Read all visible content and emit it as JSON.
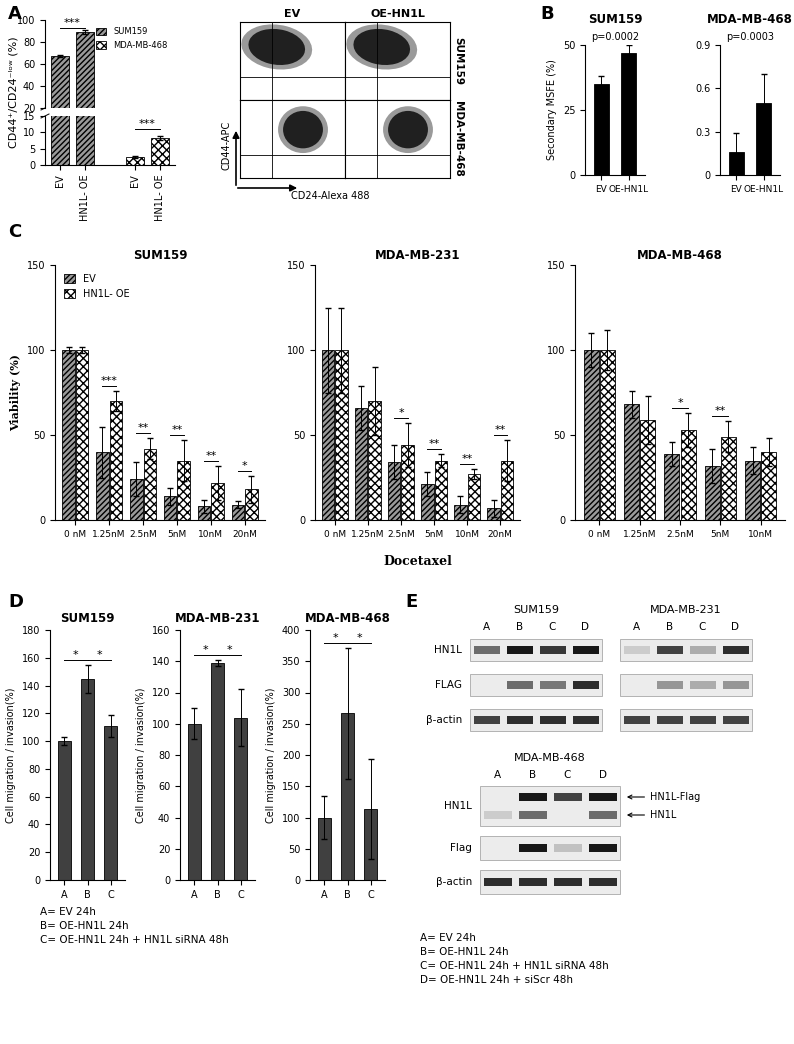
{
  "panel_labels": [
    "A",
    "B",
    "C",
    "D",
    "E"
  ],
  "chart_data": [
    {
      "type": "bar",
      "ylabel": "CD44⁺/CD24⁻ˡᵒʷ (%)",
      "categories": [
        "EV",
        "HN1L- OE",
        null,
        "EV",
        "HN1L- OE"
      ],
      "series": [
        {
          "name": "SUM159",
          "color": "#9a9a9a",
          "values": [
            67,
            89,
            null,
            null,
            null
          ],
          "errors": [
            1,
            2,
            null,
            null,
            null
          ]
        },
        {
          "name": "MDA-MB-468",
          "color": "#ffffff",
          "values": [
            null,
            null,
            null,
            2.5,
            8.3
          ],
          "errors": [
            null,
            null,
            null,
            0.3,
            0.7
          ]
        }
      ],
      "ylim": [
        0,
        100
      ],
      "axis_break": [
        15,
        20
      ],
      "yticks": [
        0,
        5,
        10,
        15,
        20,
        40,
        60,
        80,
        100
      ],
      "legend": "upper right",
      "annotations": [
        {
          "text": "***",
          "categories": [
            0,
            1
          ]
        },
        {
          "text": "***",
          "categories": [
            3,
            4
          ]
        }
      ]
    },
    {
      "type": "bar",
      "title": "SUM159",
      "ylabel": "Secondary MSFE (%)",
      "categories": [
        "EV",
        "OE-HN1L"
      ],
      "values": [
        35,
        47
      ],
      "errors": [
        3,
        3
      ],
      "color": "#000000",
      "ylim": [
        0,
        50
      ],
      "yticks": [
        0,
        25,
        50
      ],
      "annotations": [
        {
          "text": "p=0.0002"
        }
      ]
    },
    {
      "type": "bar",
      "title": "MDA-MB-468",
      "categories": [
        "EV",
        "OE-HN1L"
      ],
      "values": [
        0.16,
        0.5
      ],
      "errors": [
        0.13,
        0.2
      ],
      "color": "#000000",
      "ylim": [
        0,
        0.9
      ],
      "yticks": [
        0,
        0.3,
        0.6,
        0.9
      ],
      "annotations": [
        {
          "text": "p=0.0003"
        }
      ]
    },
    {
      "type": "bar",
      "title": "SUM159",
      "ylabel": "Viability (%)",
      "categories": [
        "0 nM",
        "1.25nM",
        "2.5nM",
        "5nM",
        "10nM",
        "20nM"
      ],
      "series": [
        {
          "name": "EV",
          "color": "#9a9a9a",
          "values": [
            100,
            40,
            24,
            14,
            8,
            9
          ],
          "errors": [
            2,
            15,
            10,
            5,
            4,
            2
          ]
        },
        {
          "name": "HN1L- OE",
          "color": "#ffffff",
          "values": [
            100,
            70,
            42,
            35,
            22,
            18
          ],
          "errors": [
            2,
            6,
            6,
            12,
            10,
            8
          ]
        }
      ],
      "ylim": [
        0,
        150
      ],
      "yticks": [
        0,
        50,
        100,
        150
      ],
      "legend": "upper left",
      "annotations": [
        {
          "text": "***",
          "categories": [
            1
          ]
        },
        {
          "text": "**",
          "categories": [
            2
          ]
        },
        {
          "text": "**",
          "categories": [
            3
          ]
        },
        {
          "text": "**",
          "categories": [
            4
          ]
        },
        {
          "text": "*",
          "categories": [
            5
          ]
        }
      ]
    },
    {
      "type": "bar",
      "title": "MDA-MB-231",
      "xlabel": "Docetaxel",
      "categories": [
        "0 nM",
        "1.25nM",
        "2.5nM",
        "5nM",
        "10nM",
        "20nM"
      ],
      "series": [
        {
          "name": "EV",
          "color": "#9a9a9a",
          "values": [
            100,
            66,
            34,
            21,
            9,
            7
          ],
          "errors": [
            25,
            13,
            10,
            7,
            5,
            5
          ]
        },
        {
          "name": "HN1L- OE",
          "color": "#ffffff",
          "values": [
            100,
            70,
            44,
            35,
            27,
            35
          ],
          "errors": [
            25,
            20,
            13,
            4,
            3,
            12
          ]
        }
      ],
      "ylim": [
        0,
        150
      ],
      "yticks": [
        0,
        50,
        100,
        150
      ],
      "annotations": [
        {
          "text": "*",
          "categories": [
            2
          ]
        },
        {
          "text": "**",
          "categories": [
            3
          ]
        },
        {
          "text": "**",
          "categories": [
            4
          ]
        },
        {
          "text": "**",
          "categories": [
            5
          ]
        }
      ]
    },
    {
      "type": "bar",
      "title": "MDA-MB-468",
      "categories": [
        "0 nM",
        "1.25nM",
        "2.5nM",
        "5nM",
        "10nM"
      ],
      "series": [
        {
          "name": "EV",
          "color": "#9a9a9a",
          "values": [
            100,
            68,
            39,
            32,
            35
          ],
          "errors": [
            10,
            8,
            7,
            10,
            8
          ]
        },
        {
          "name": "HN1L- OE",
          "color": "#ffffff",
          "values": [
            100,
            59,
            53,
            49,
            40
          ],
          "errors": [
            12,
            14,
            10,
            9,
            8
          ]
        }
      ],
      "ylim": [
        0,
        150
      ],
      "yticks": [
        0,
        50,
        100,
        150
      ],
      "annotations": [
        {
          "text": "*",
          "categories": [
            2
          ]
        },
        {
          "text": "**",
          "categories": [
            3
          ]
        }
      ]
    },
    {
      "type": "bar",
      "title": "SUM159",
      "ylabel": "Cell migration / invasion(%)",
      "categories": [
        "A",
        "B",
        "C"
      ],
      "values": [
        100,
        145,
        111
      ],
      "errors": [
        3,
        10,
        8
      ],
      "color": "#404040",
      "ylim": [
        0,
        180
      ],
      "yticks": [
        0,
        20,
        40,
        60,
        80,
        100,
        120,
        140,
        160,
        180
      ],
      "annotations": [
        {
          "text": "*",
          "categories": [
            0,
            1
          ]
        },
        {
          "text": "*",
          "categories": [
            1,
            2
          ]
        }
      ]
    },
    {
      "type": "bar",
      "title": "MDA-MB-231",
      "ylabel": "Cell migration / invasion(%)",
      "categories": [
        "A",
        "B",
        "C"
      ],
      "values": [
        100,
        139,
        104
      ],
      "errors": [
        10,
        2,
        18
      ],
      "color": "#404040",
      "ylim": [
        0,
        160
      ],
      "yticks": [
        0,
        20,
        40,
        60,
        80,
        100,
        120,
        140,
        160
      ],
      "annotations": [
        {
          "text": "*",
          "categories": [
            0,
            1
          ]
        },
        {
          "text": "*",
          "categories": [
            1,
            2
          ]
        }
      ]
    },
    {
      "type": "bar",
      "title": "MDA-MB-468",
      "ylabel": "Cell migration / invasion(%)",
      "categories": [
        "A",
        "B",
        "C"
      ],
      "values": [
        100,
        267,
        113
      ],
      "errors": [
        35,
        105,
        80
      ],
      "color": "#404040",
      "ylim": [
        0,
        400
      ],
      "yticks": [
        0,
        50,
        100,
        150,
        200,
        250,
        300,
        350,
        400
      ],
      "annotations": [
        {
          "text": "*",
          "categories": [
            0,
            1
          ]
        },
        {
          "text": "*",
          "categories": [
            1,
            2
          ]
        }
      ]
    }
  ],
  "flow_cytometry": {
    "columns": [
      "EV",
      "OE-HN1L"
    ],
    "rows": [
      "SUM159",
      "MDA-MB-468"
    ],
    "ylabel": "CD44-APC",
    "xlabel": "CD24-Alexa 488"
  },
  "western_blots": [
    {
      "groups": [
        "SUM159",
        "MDA-MB-231"
      ],
      "lanes": [
        "A",
        "B",
        "C",
        "D"
      ],
      "rows": [
        {
          "label": "HN1L",
          "intensity": [
            [
              0.6,
              1,
              0.85,
              1
            ],
            [
              0.15,
              0.8,
              0.3,
              0.9
            ]
          ]
        },
        {
          "label": "FLAG",
          "intensity": [
            [
              0,
              0.6,
              0.55,
              0.9
            ],
            [
              0,
              0.4,
              0.3,
              0.4
            ]
          ]
        },
        {
          "label": "β-actin",
          "intensity": [
            [
              0.8,
              0.9,
              0.9,
              0.9
            ],
            [
              0.8,
              0.8,
              0.8,
              0.8
            ]
          ]
        }
      ]
    },
    {
      "groups": [
        "MDA-MB-468"
      ],
      "lanes": [
        "A",
        "B",
        "C",
        "D"
      ],
      "rows": [
        {
          "label": "HN1L",
          "bands": [
            {
              "label": "HN1L-Flag",
              "intensity": [
                0,
                1,
                0.8,
                1
              ]
            },
            {
              "label": "HN1L",
              "intensity": [
                0.15,
                0.6,
                0,
                0.6
              ]
            }
          ]
        },
        {
          "label": "Flag",
          "intensity": [
            0,
            1,
            0.2,
            1
          ]
        },
        {
          "label": "β-actin",
          "intensity": [
            0.9,
            0.9,
            0.9,
            0.9
          ]
        }
      ]
    }
  ],
  "captions": {
    "D": [
      "A= EV 24h",
      "B= OE-HN1L 24h",
      "C= OE-HN1L 24h + HN1L siRNA 48h"
    ],
    "E": [
      "A= EV 24h",
      "B= OE-HN1L 24h",
      "C= OE-HN1L 24h + HN1L siRNA 48h",
      "D= OE-HN1L 24h + siScr 48h"
    ]
  }
}
